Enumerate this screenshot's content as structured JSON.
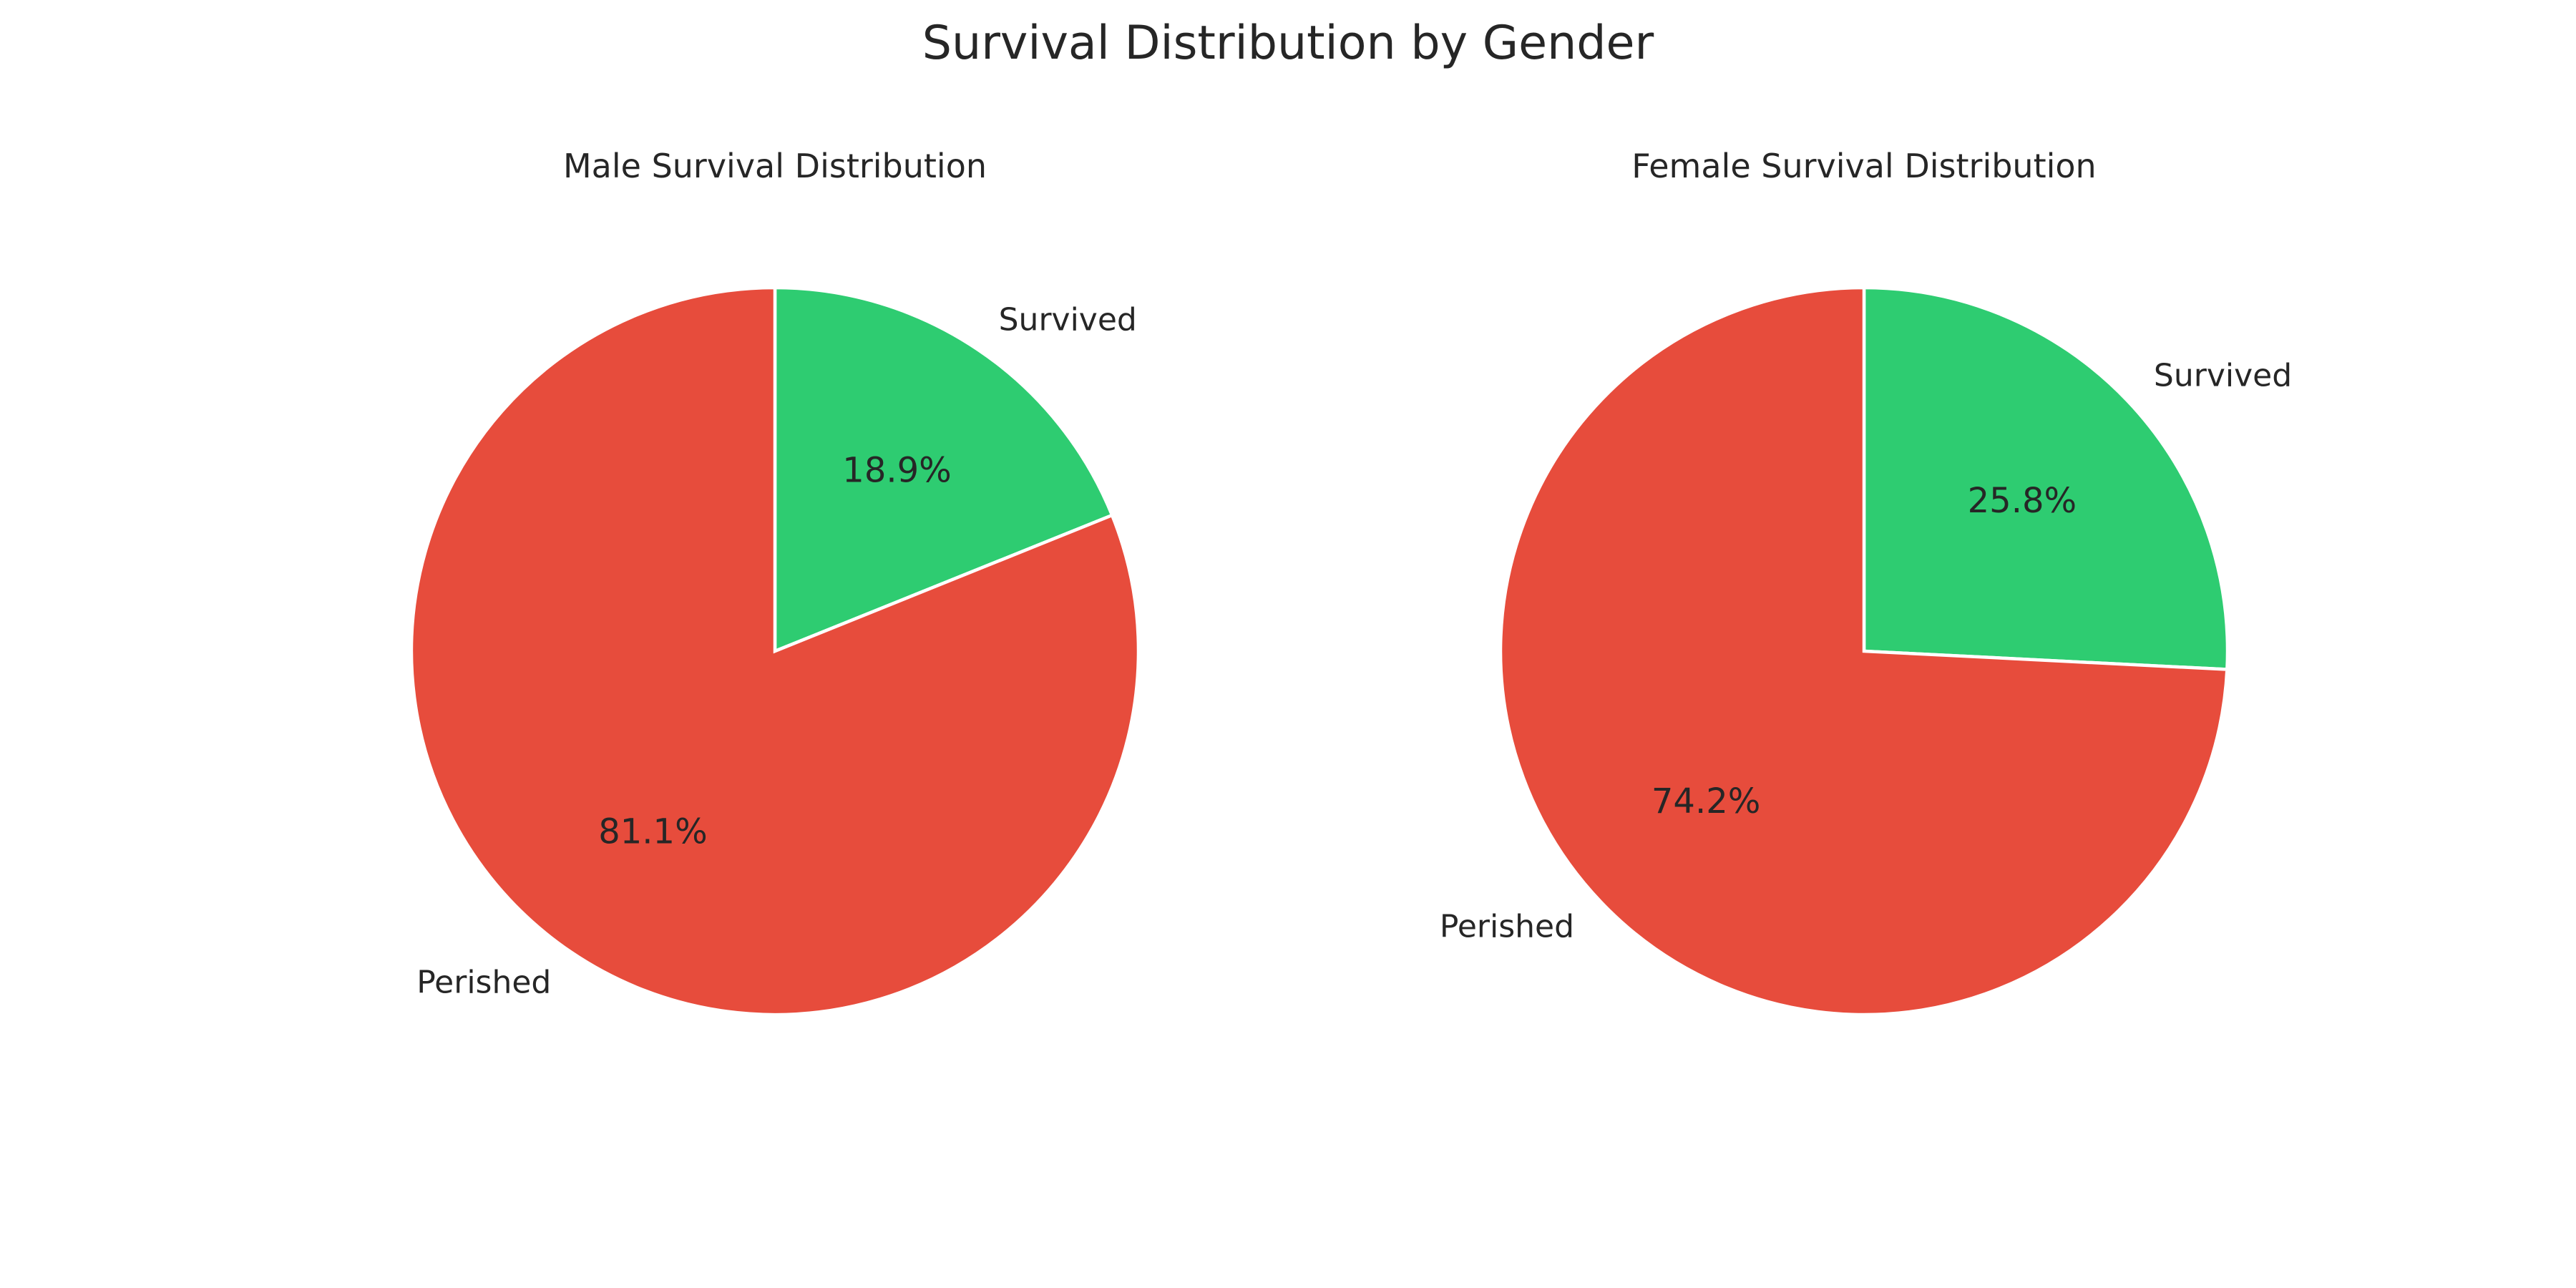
{
  "figure": {
    "title": "Survival Distribution by Gender"
  },
  "chart_data": [
    {
      "type": "pie",
      "title": "Male Survival Distribution",
      "labels": [
        "Survived",
        "Perished"
      ],
      "values": [
        18.9,
        81.1
      ],
      "value_labels": [
        "18.9%",
        "81.1%"
      ],
      "colors": [
        "#2ecc71",
        "#e74c3c"
      ],
      "start_angle_deg": 90,
      "direction": "clockwise",
      "wedge_edge_color": "#ffffff"
    },
    {
      "type": "pie",
      "title": "Female Survival Distribution",
      "labels": [
        "Survived",
        "Perished"
      ],
      "values": [
        25.8,
        74.2
      ],
      "value_labels": [
        "25.8%",
        "74.2%"
      ],
      "colors": [
        "#2ecc71",
        "#e74c3c"
      ],
      "start_angle_deg": 90,
      "direction": "clockwise",
      "wedge_edge_color": "#ffffff"
    }
  ]
}
